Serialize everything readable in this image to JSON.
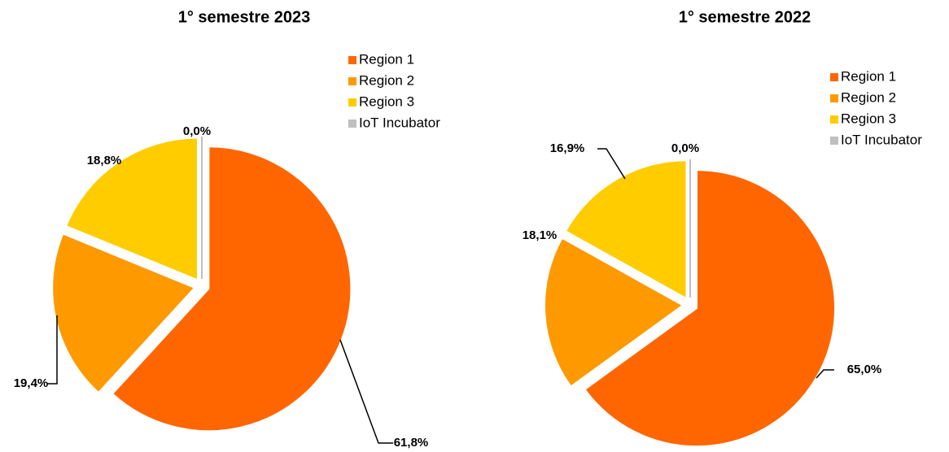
{
  "chart_data": [
    {
      "type": "pie",
      "title": "1° semestre 2023",
      "categories": [
        "Region 1",
        "Region 2",
        "Region 3",
        "IoT Incubator"
      ],
      "values": [
        61.8,
        19.4,
        18.8,
        0.0
      ],
      "value_labels": [
        "61,8%",
        "19,4%",
        "18,8%",
        "0,0%"
      ],
      "colors": [
        "#ff6600",
        "#ff9900",
        "#ffcc00",
        "#bfbfbf"
      ],
      "legend": "top-right"
    },
    {
      "type": "pie",
      "title": "1° semestre 2022",
      "categories": [
        "Region 1",
        "Region 2",
        "Region 3",
        "IoT Incubator"
      ],
      "values": [
        65.0,
        18.1,
        16.9,
        0.0
      ],
      "value_labels": [
        "65,0%",
        "18,1%",
        "16,9%",
        "0,0%"
      ],
      "colors": [
        "#ff6600",
        "#ff9900",
        "#ffcc00",
        "#bfbfbf"
      ],
      "legend": "top-right"
    }
  ]
}
